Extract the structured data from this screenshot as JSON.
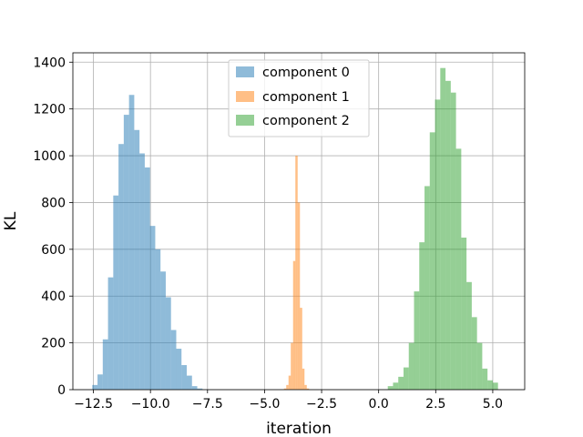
{
  "chart_data": {
    "type": "bar",
    "title": "",
    "xlabel": "iteration",
    "ylabel": "KL",
    "xlim": [
      -13.4,
      6.4
    ],
    "ylim": [
      0,
      1440
    ],
    "xticks": [
      -12.5,
      -10.0,
      -7.5,
      -5.0,
      -2.5,
      0.0,
      2.5,
      5.0
    ],
    "xtick_labels": [
      "−12.5",
      "−10.0",
      "−7.5",
      "−5.0",
      "−2.5",
      "0.0",
      "2.5",
      "5.0"
    ],
    "yticks": [
      0,
      200,
      400,
      600,
      800,
      1000,
      1200,
      1400
    ],
    "ytick_labels": [
      "0",
      "200",
      "400",
      "600",
      "800",
      "1000",
      "1200",
      "1400"
    ],
    "grid": true,
    "legend_position": "top-center",
    "series": [
      {
        "name": "component 0",
        "color": "#1f77b4",
        "alpha": 0.5,
        "bins": [
          [
            -12.55,
            -12.32,
            20
          ],
          [
            -12.32,
            -12.09,
            65
          ],
          [
            -12.09,
            -11.86,
            215
          ],
          [
            -11.86,
            -11.63,
            480
          ],
          [
            -11.63,
            -11.4,
            830
          ],
          [
            -11.4,
            -11.17,
            1050
          ],
          [
            -11.17,
            -10.94,
            1175
          ],
          [
            -10.94,
            -10.71,
            1260
          ],
          [
            -10.71,
            -10.48,
            1110
          ],
          [
            -10.48,
            -10.25,
            1010
          ],
          [
            -10.25,
            -10.02,
            950
          ],
          [
            -10.02,
            -9.79,
            700
          ],
          [
            -9.79,
            -9.56,
            600
          ],
          [
            -9.56,
            -9.33,
            505
          ],
          [
            -9.33,
            -9.1,
            395
          ],
          [
            -9.1,
            -8.87,
            255
          ],
          [
            -8.87,
            -8.64,
            175
          ],
          [
            -8.64,
            -8.41,
            105
          ],
          [
            -8.41,
            -8.18,
            60
          ],
          [
            -8.18,
            -7.95,
            15
          ],
          [
            -7.95,
            -7.72,
            5
          ]
        ]
      },
      {
        "name": "component 1",
        "color": "#ff7f0e",
        "alpha": 0.5,
        "bins": [
          [
            -4.15,
            -4.05,
            5
          ],
          [
            -4.05,
            -3.95,
            20
          ],
          [
            -3.95,
            -3.85,
            60
          ],
          [
            -3.85,
            -3.75,
            200
          ],
          [
            -3.75,
            -3.65,
            550
          ],
          [
            -3.65,
            -3.55,
            1000
          ],
          [
            -3.55,
            -3.45,
            800
          ],
          [
            -3.45,
            -3.35,
            350
          ],
          [
            -3.35,
            -3.25,
            90
          ],
          [
            -3.25,
            -3.15,
            20
          ],
          [
            -3.15,
            -3.05,
            5
          ]
        ]
      },
      {
        "name": "component 2",
        "color": "#2ca02c",
        "alpha": 0.5,
        "bins": [
          [
            0.4,
            0.63,
            15
          ],
          [
            0.63,
            0.86,
            30
          ],
          [
            0.86,
            1.09,
            55
          ],
          [
            1.09,
            1.32,
            95
          ],
          [
            1.32,
            1.55,
            200
          ],
          [
            1.55,
            1.78,
            420
          ],
          [
            1.78,
            2.01,
            630
          ],
          [
            2.01,
            2.24,
            870
          ],
          [
            2.24,
            2.47,
            1100
          ],
          [
            2.47,
            2.7,
            1240
          ],
          [
            2.7,
            2.93,
            1375
          ],
          [
            2.93,
            3.16,
            1320
          ],
          [
            3.16,
            3.39,
            1270
          ],
          [
            3.39,
            3.62,
            1030
          ],
          [
            3.62,
            3.85,
            650
          ],
          [
            3.85,
            4.08,
            460
          ],
          [
            4.08,
            4.31,
            310
          ],
          [
            4.31,
            4.54,
            200
          ],
          [
            4.54,
            4.77,
            90
          ],
          [
            4.77,
            5.0,
            40
          ],
          [
            5.0,
            5.23,
            30
          ]
        ]
      }
    ]
  }
}
